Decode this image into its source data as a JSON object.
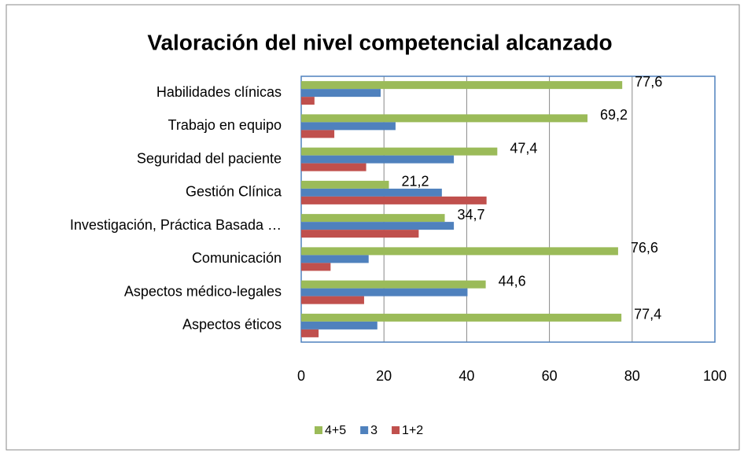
{
  "chart_data": {
    "type": "bar",
    "orientation": "horizontal",
    "title": "Valoración del nivel competencial alcanzado",
    "categories": [
      "Habilidades clínicas",
      "Trabajo en equipo",
      "Seguridad del paciente",
      "Gestión Clínica",
      "Investigación, Práctica Basada …",
      "Comunicación",
      "Aspectos médico-legales",
      "Aspectos éticos"
    ],
    "series": [
      {
        "name": "4+5",
        "color": "#9bbb59",
        "values": [
          77.6,
          69.2,
          47.4,
          21.2,
          34.7,
          76.6,
          44.6,
          77.4
        ],
        "value_labels": [
          "77,6",
          "69,2",
          "47,4",
          "21,2",
          "34,7",
          "76,6",
          "44,6",
          "77,4"
        ]
      },
      {
        "name": "3",
        "color": "#4f81bd",
        "values": [
          19.2,
          22.8,
          36.9,
          34.0,
          36.9,
          16.3,
          40.2,
          18.4
        ]
      },
      {
        "name": "1+2",
        "color": "#c0504d",
        "values": [
          3.2,
          8.0,
          15.7,
          44.8,
          28.4,
          7.1,
          15.2,
          4.2
        ]
      }
    ],
    "xlim": [
      0,
      100
    ],
    "xticks": [
      0,
      20,
      40,
      60,
      80,
      100
    ],
    "grid": true,
    "legend": "bottom"
  }
}
